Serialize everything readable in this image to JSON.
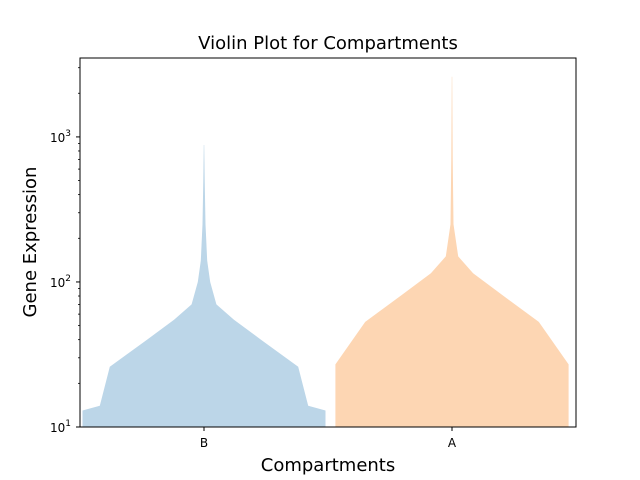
{
  "chart_data": {
    "type": "violin",
    "title": "Violin Plot for Compartments",
    "xlabel": "Compartments",
    "ylabel": "Gene Expression",
    "categories": [
      "B",
      "A"
    ],
    "yscale": "log",
    "ylim": [
      10,
      3500
    ],
    "yticks": [
      {
        "value": 10,
        "base": "10",
        "exp": "1"
      },
      {
        "value": 100,
        "base": "10",
        "exp": "2"
      },
      {
        "value": 1000,
        "base": "10",
        "exp": "3"
      }
    ],
    "grid": false,
    "legend": "none",
    "violins": [
      {
        "category": "B",
        "color": "#bcd6e8",
        "profile": [
          {
            "y": 10,
            "w": 0.49
          },
          {
            "y": 13,
            "w": 0.49
          },
          {
            "y": 14,
            "w": 0.42
          },
          {
            "y": 26,
            "w": 0.38
          },
          {
            "y": 40,
            "w": 0.23
          },
          {
            "y": 55,
            "w": 0.12
          },
          {
            "y": 70,
            "w": 0.05
          },
          {
            "y": 100,
            "w": 0.025
          },
          {
            "y": 140,
            "w": 0.013
          },
          {
            "y": 250,
            "w": 0.006
          },
          {
            "y": 500,
            "w": 0.003
          },
          {
            "y": 880,
            "w": 0.001
          }
        ]
      },
      {
        "category": "A",
        "color": "#fdd6b3",
        "profile": [
          {
            "y": 10,
            "w": 0.47
          },
          {
            "y": 27,
            "w": 0.47
          },
          {
            "y": 53,
            "w": 0.35
          },
          {
            "y": 82,
            "w": 0.2
          },
          {
            "y": 115,
            "w": 0.085
          },
          {
            "y": 150,
            "w": 0.025
          },
          {
            "y": 250,
            "w": 0.006
          },
          {
            "y": 700,
            "w": 0.003
          },
          {
            "y": 2600,
            "w": 0.001
          }
        ]
      }
    ]
  }
}
